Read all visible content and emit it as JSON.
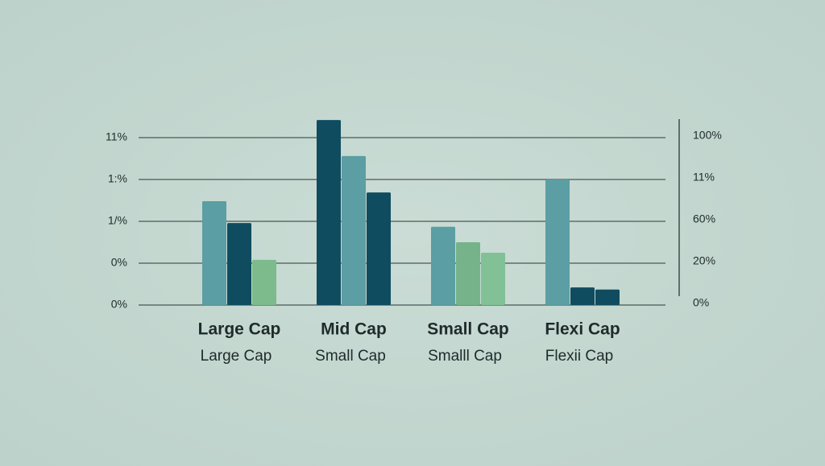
{
  "chart_data": {
    "type": "bar",
    "categories": [
      "Large Cap",
      "Mid Cap",
      "Small Cap",
      "Flexi Cap"
    ],
    "subcategories": [
      "Large Cap",
      "Small Cap",
      "Smalll Cap",
      "Flexii Cap"
    ],
    "series": [
      {
        "colors": [
          "#5b9ea3",
          "#0f4c5f",
          "#5b9ea3",
          "#5b9ea3"
        ],
        "values": [
          2.48,
          4.42,
          1.87,
          3.0
        ]
      },
      {
        "colors": [
          "#0f4c5f",
          "#5b9ea3",
          "#76b38a",
          "#0f4c5f"
        ],
        "values": [
          1.96,
          3.56,
          1.5,
          0.42
        ]
      },
      {
        "colors": [
          "#7dbb8d",
          "#0f4c5f",
          "#82c096",
          "#0f4c5f"
        ],
        "values": [
          1.08,
          2.69,
          1.25,
          0.37
        ]
      }
    ],
    "ylim": [
      0,
      4.5
    ],
    "yticks": [
      0,
      1,
      2,
      3,
      4
    ],
    "y_axis_labels": [
      "0%",
      "0%",
      "1/%",
      "1:%",
      "11%"
    ],
    "y2_axis_labels": [
      "0%",
      "20%",
      "60%",
      "11%",
      "100%"
    ],
    "grid": true
  }
}
